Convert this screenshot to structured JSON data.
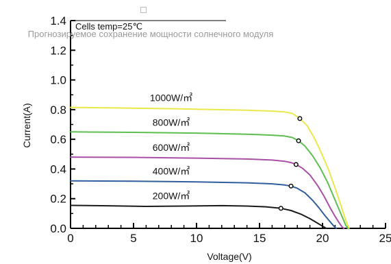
{
  "overlay": {
    "caption": "Прогнозируемое сохранение мощности солнечного модуля",
    "icon": "image-placeholder-icon"
  },
  "chart_data": {
    "type": "line",
    "title": "",
    "annotation": "Cells temp=25℃",
    "xlabel": "Voltage(V)",
    "ylabel": "Current(A)",
    "xlim": [
      0,
      25
    ],
    "ylim": [
      0,
      1.4
    ],
    "xticks": [
      0,
      5,
      10,
      15,
      20,
      25
    ],
    "yticks": [
      0.0,
      0.2,
      0.4,
      0.6,
      0.8,
      1.0,
      1.2,
      1.4
    ],
    "xtick_labels": [
      "0",
      "5",
      "10",
      "15",
      "20",
      "25"
    ],
    "ytick_labels": [
      "0.0",
      "0.2",
      "0.4",
      "0.6",
      "0.8",
      "1.0",
      "1.2",
      "1.4"
    ],
    "grid": false,
    "legend": "inline labels above curves",
    "series": [
      {
        "name": "1000W/㎡",
        "color": "#e9e84a",
        "x": [
          0,
          5,
          10,
          14,
          16,
          17,
          17.6,
          18.2,
          18.8,
          19.4,
          20,
          20.5,
          21,
          21.4,
          21.7,
          21.95,
          22.1
        ],
        "y": [
          0.815,
          0.81,
          0.803,
          0.796,
          0.79,
          0.784,
          0.775,
          0.74,
          0.69,
          0.6,
          0.49,
          0.39,
          0.27,
          0.17,
          0.09,
          0.03,
          0.0
        ],
        "marker": [
          18.2,
          0.74
        ]
      },
      {
        "name": "800W/㎡",
        "color": "#5cbf4f",
        "x": [
          0,
          5,
          10,
          14,
          16,
          17,
          17.6,
          18.1,
          18.6,
          19.2,
          19.8,
          20.4,
          20.9,
          21.3,
          21.6,
          21.85,
          22.0
        ],
        "y": [
          0.65,
          0.647,
          0.642,
          0.634,
          0.628,
          0.622,
          0.612,
          0.59,
          0.555,
          0.49,
          0.41,
          0.31,
          0.21,
          0.13,
          0.07,
          0.02,
          0.0
        ],
        "marker": [
          18.1,
          0.59
        ]
      },
      {
        "name": "600W/㎡",
        "color": "#a94fa7",
        "x": [
          0,
          5,
          10,
          14,
          16,
          17,
          17.5,
          17.9,
          18.4,
          19.0,
          19.6,
          20.1,
          20.6,
          21.0,
          21.3,
          21.55,
          21.7
        ],
        "y": [
          0.48,
          0.478,
          0.473,
          0.467,
          0.46,
          0.452,
          0.443,
          0.43,
          0.405,
          0.36,
          0.29,
          0.22,
          0.14,
          0.08,
          0.04,
          0.01,
          0.0
        ],
        "marker": [
          17.9,
          0.43
        ]
      },
      {
        "name": "400W/㎡",
        "color": "#2f5f9c",
        "x": [
          0,
          5,
          10,
          14,
          16,
          17,
          17.5,
          18.0,
          18.6,
          19.2,
          19.7,
          20.2,
          20.6,
          20.9,
          21.1
        ],
        "y": [
          0.32,
          0.318,
          0.313,
          0.307,
          0.3,
          0.292,
          0.285,
          0.27,
          0.24,
          0.19,
          0.14,
          0.085,
          0.045,
          0.015,
          0.0
        ],
        "marker": [
          17.5,
          0.285
        ]
      },
      {
        "name": "200W/㎡",
        "color": "#1a1a1a",
        "x": [
          0,
          3,
          6,
          9,
          12,
          14,
          15.5,
          16.7,
          17.5,
          18.3,
          19.0,
          19.6,
          20.0,
          20.3
        ],
        "y": [
          0.155,
          0.152,
          0.148,
          0.15,
          0.153,
          0.15,
          0.145,
          0.135,
          0.12,
          0.095,
          0.065,
          0.035,
          0.015,
          0.0
        ],
        "marker": [
          16.7,
          0.135
        ]
      }
    ]
  }
}
